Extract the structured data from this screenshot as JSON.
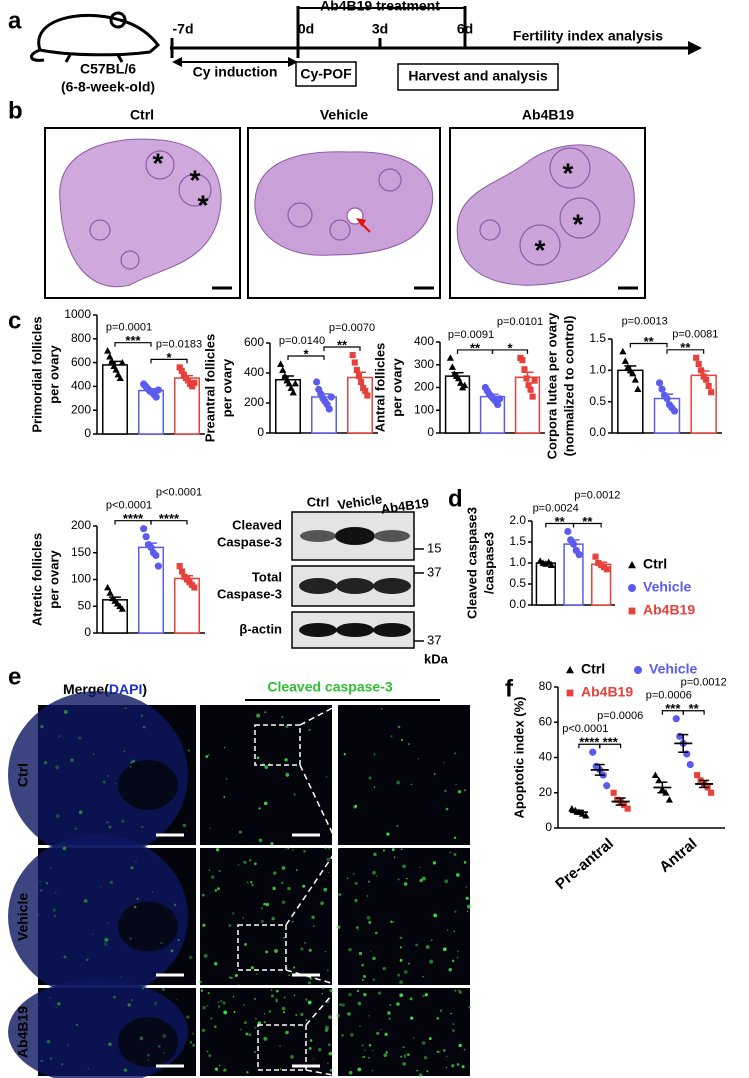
{
  "panel_labels": [
    "a",
    "b",
    "c",
    "d",
    "e",
    "f"
  ],
  "timeline": {
    "treatment": "Ab4B19 treatment",
    "days": [
      "-7d",
      "0d",
      "3d",
      "6d"
    ],
    "end": "Fertility index analysis",
    "mouse": [
      "C57BL/6",
      "(6-8-week-old)"
    ],
    "induction": "Cy induction",
    "model": "Cy-POF",
    "harvest": "Harvest and analysis"
  },
  "histology": [
    {
      "label": "Ctrl",
      "marks": [
        "*",
        "*",
        "*"
      ]
    },
    {
      "label": "Vehicle"
    },
    {
      "label": "Ab4B19",
      "marks": [
        "*",
        "*",
        "*"
      ]
    }
  ],
  "western_blot": {
    "lanes": [
      "Ctrl",
      "Vehicle",
      "Ab4B19"
    ],
    "rows": [
      [
        "Cleaved",
        "Caspase-3"
      ],
      [
        "Total",
        "Caspase-3"
      ],
      [
        "β-actin"
      ]
    ],
    "markers": [
      "15",
      "37",
      "37"
    ],
    "unit": "kDa"
  },
  "fluorescence": {
    "merge": [
      "Merge(",
      "DAPI",
      ")"
    ],
    "stain": "Cleaved caspase-3",
    "rows": [
      "Ctrl",
      "Vehicle",
      "Ab4B19"
    ]
  },
  "chart_data": [
    {
      "type": "bar",
      "ylabel": [
        "Primordial follicles",
        "per ovary"
      ],
      "ylim": [
        0,
        1000
      ],
      "yticks": [
        0,
        200,
        400,
        600,
        800,
        1000
      ],
      "colors": [
        "#000000",
        "#5b5bef",
        "#e8403a"
      ],
      "markers": [
        "triangle",
        "circle",
        "square"
      ],
      "values": [
        580,
        365,
        470
      ],
      "errors": [
        30,
        15,
        20
      ],
      "points": [
        [
          700,
          650,
          610,
          570,
          540,
          500,
          470,
          600
        ],
        [
          420,
          400,
          380,
          360,
          350,
          330,
          310,
          370
        ],
        [
          560,
          530,
          500,
          470,
          450,
          420,
          400,
          430
        ]
      ],
      "comparisons": [
        {
          "p": "p=0.0001",
          "stars": "***"
        },
        {
          "p": "p=0.0183",
          "stars": "*"
        }
      ]
    },
    {
      "type": "bar",
      "ylabel": [
        "Preantral follicles",
        "per ovary"
      ],
      "ylim": [
        0,
        600
      ],
      "yticks": [
        0,
        200,
        400,
        600
      ],
      "colors": [
        "#000000",
        "#5b5bef",
        "#e8403a"
      ],
      "markers": [
        "triangle",
        "circle",
        "square"
      ],
      "values": [
        355,
        240,
        370
      ],
      "errors": [
        25,
        20,
        35
      ],
      "points": [
        [
          460,
          420,
          380,
          350,
          330,
          300,
          270,
          330
        ],
        [
          340,
          290,
          260,
          230,
          210,
          190,
          160,
          240
        ],
        [
          520,
          470,
          420,
          380,
          340,
          300,
          280,
          250
        ]
      ],
      "comparisons": [
        {
          "p": "p=0.0140",
          "stars": "*"
        },
        {
          "p": "p=0.0070",
          "stars": "**"
        }
      ]
    },
    {
      "type": "bar",
      "ylabel": [
        "Antral follicles",
        "per ovary"
      ],
      "ylim": [
        0,
        400
      ],
      "yticks": [
        0,
        100,
        200,
        300,
        400
      ],
      "colors": [
        "#000000",
        "#5b5bef",
        "#e8403a"
      ],
      "markers": [
        "triangle",
        "circle",
        "square"
      ],
      "values": [
        250,
        160,
        245
      ],
      "errors": [
        15,
        10,
        22
      ],
      "points": [
        [
          330,
          290,
          260,
          250,
          240,
          220,
          200,
          210
        ],
        [
          200,
          185,
          170,
          160,
          150,
          140,
          125,
          150
        ],
        [
          330,
          320,
          280,
          240,
          210,
          190,
          160,
          230
        ]
      ],
      "comparisons": [
        {
          "p": "p=0.0091",
          "stars": "**"
        },
        {
          "p": "p=0.0101",
          "stars": "*"
        }
      ]
    },
    {
      "type": "bar",
      "ylabel": [
        "Corpora lutea per ovary",
        "(normalized to control)"
      ],
      "ylim": [
        0,
        1.5
      ],
      "yticks": [
        {
          "value": 0,
          "label": "0.0"
        },
        0.5,
        {
          "value": 1,
          "label": "1.0"
        },
        1.5
      ],
      "colors": [
        "#000000",
        "#5b5bef",
        "#e8403a"
      ],
      "markers": [
        "triangle",
        "circle",
        "square"
      ],
      "values": [
        1.0,
        0.55,
        0.92
      ],
      "errors": [
        0.07,
        0.07,
        0.07
      ],
      "points": [
        [
          1.3,
          1.15,
          1.05,
          1.0,
          0.95,
          0.85,
          0.7
        ],
        [
          0.8,
          0.7,
          0.6,
          0.55,
          0.45,
          0.4,
          0.35
        ],
        [
          1.2,
          1.1,
          1.0,
          0.9,
          0.85,
          0.75,
          0.65
        ]
      ],
      "comparisons": [
        {
          "p": "p=0.0013",
          "stars": "**"
        },
        {
          "p": "p=0.0081",
          "stars": "**"
        }
      ]
    },
    {
      "type": "bar",
      "ylabel": [
        "Atretic follicles",
        "per ovary"
      ],
      "ylim": [
        0,
        200
      ],
      "yticks": [
        0,
        50,
        100,
        150,
        200
      ],
      "colors": [
        "#000000",
        "#5b5bef",
        "#e8403a"
      ],
      "markers": [
        "triangle",
        "circle",
        "square"
      ],
      "values": [
        62,
        160,
        102
      ],
      "errors": [
        5,
        8,
        5
      ],
      "points": [
        [
          85,
          75,
          65,
          60,
          55,
          50,
          45
        ],
        [
          195,
          180,
          165,
          160,
          150,
          145,
          125
        ],
        [
          125,
          115,
          105,
          100,
          95,
          90,
          85
        ]
      ],
      "comparisons": [
        {
          "p": "p<0.0001",
          "stars": "****"
        },
        {
          "p": "p<0.0001",
          "stars": "****"
        }
      ]
    },
    {
      "type": "bar",
      "ylabel": [
        "Cleaved caspase3",
        "/caspase3"
      ],
      "ylim": [
        0,
        2
      ],
      "yticks": [
        {
          "value": 0,
          "label": "0.0"
        },
        0.5,
        {
          "value": 1,
          "label": "1.0"
        },
        1.5,
        {
          "value": 2,
          "label": "2.0"
        }
      ],
      "colors": [
        "#000000",
        "#5b5bef",
        "#e8403a"
      ],
      "markers": [
        "triangle",
        "circle",
        "square"
      ],
      "values": [
        1.0,
        1.45,
        0.97
      ],
      "errors": [
        0.02,
        0.1,
        0.05
      ],
      "points": [
        [
          1.05,
          1.0,
          0.98,
          1.02,
          0.95
        ],
        [
          1.75,
          1.55,
          1.45,
          1.3,
          1.2
        ],
        [
          1.15,
          1.0,
          0.95,
          0.9,
          0.85
        ]
      ],
      "comparisons": [
        {
          "p": "p=0.0024",
          "stars": "**"
        },
        {
          "p": "p=0.0012",
          "stars": "**"
        }
      ],
      "legend": [
        "Ctrl",
        "Vehicle",
        "Ab4B19"
      ]
    },
    {
      "type": "grouped_dot",
      "ylabel": [
        "Apoptotic index (%)"
      ],
      "ylim": [
        0,
        80
      ],
      "yticks": [
        0,
        20,
        40,
        60,
        80
      ],
      "categories": [
        "Pre-antral",
        "Antral"
      ],
      "series": [
        {
          "name": "Ctrl",
          "color": "#000000",
          "marker": "triangle",
          "values": [
            9,
            23
          ],
          "errors": [
            1,
            3
          ],
          "points": [
            [
              11,
              10,
              9,
              8,
              7
            ],
            [
              30,
              27,
              22,
              20,
              16
            ]
          ]
        },
        {
          "name": "Vehicle",
          "color": "#5b5bef",
          "marker": "circle",
          "values": [
            33,
            48
          ],
          "errors": [
            3,
            5
          ],
          "points": [
            [
              43,
              35,
              33,
              30,
              24
            ],
            [
              62,
              52,
              48,
              42,
              36
            ]
          ]
        },
        {
          "name": "Ab4B19",
          "color": "#e8403a",
          "marker": "square",
          "values": [
            15,
            25
          ],
          "errors": [
            2,
            2
          ],
          "points": [
            [
              20,
              16,
              15,
              13,
              11
            ],
            [
              30,
              27,
              25,
              23,
              20
            ]
          ]
        }
      ],
      "comparisons": [
        [
          {
            "p": "p<0.0001",
            "stars": "****"
          },
          {
            "p": "p=0.0006",
            "stars": "***"
          }
        ],
        [
          {
            "p": "p=0.0006",
            "stars": "***"
          },
          {
            "p": "p=0.0012",
            "stars": "**"
          }
        ]
      ]
    }
  ]
}
